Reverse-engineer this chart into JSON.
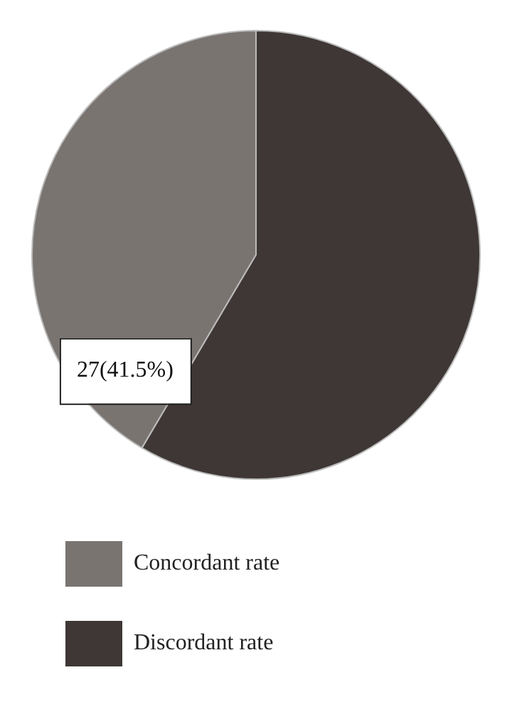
{
  "chart_data": {
    "type": "pie",
    "categories": [
      "Concordant rate",
      "Discordant rate"
    ],
    "values": [
      41.5,
      58.5
    ],
    "colors": [
      "#7a7471",
      "#3e3735"
    ],
    "value_labels": [
      "27(41.5%)",
      null
    ],
    "legend": "bottom"
  }
}
